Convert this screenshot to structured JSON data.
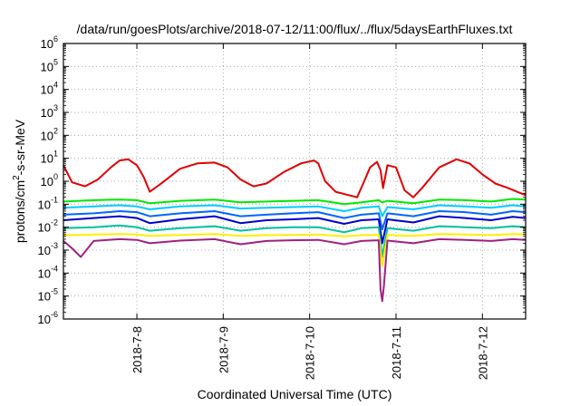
{
  "chart_data": {
    "type": "line",
    "title": "/data/run/goesPlots/archive/2018-07-12/11:00/flux/../flux/5daysEarthFluxes.txt",
    "xlabel": "Coordinated Universal Time (UTC)",
    "ylabel": "protons/cm2-s-sr-MeV",
    "ylabel_parts": {
      "base": "protons/cm",
      "sup": "2",
      "rest": "-s-sr-MeV"
    },
    "yscale": "log",
    "ylim": [
      1e-06,
      1000000.0
    ],
    "xlim": [
      7.15,
      12.5
    ],
    "y_ticks": [
      {
        "exp": -6,
        "base": "10",
        "sup": "-6"
      },
      {
        "exp": -5,
        "base": "10",
        "sup": "-5"
      },
      {
        "exp": -4,
        "base": "10",
        "sup": "-4"
      },
      {
        "exp": -3,
        "base": "10",
        "sup": "-3"
      },
      {
        "exp": -2,
        "base": "10",
        "sup": "-2"
      },
      {
        "exp": -1,
        "base": "10",
        "sup": "-1"
      },
      {
        "exp": 0,
        "base": "10",
        "sup": "0"
      },
      {
        "exp": 1,
        "base": "10",
        "sup": "1"
      },
      {
        "exp": 2,
        "base": "10",
        "sup": "2"
      },
      {
        "exp": 3,
        "base": "10",
        "sup": "3"
      },
      {
        "exp": 4,
        "base": "10",
        "sup": "4"
      },
      {
        "exp": 5,
        "base": "10",
        "sup": "5"
      },
      {
        "exp": 6,
        "base": "10",
        "sup": "6"
      }
    ],
    "x_ticks": [
      {
        "x": 8,
        "label": "2018-7-8"
      },
      {
        "x": 9,
        "label": "2018-7-9"
      },
      {
        "x": 10,
        "label": "2018-7-10"
      },
      {
        "x": 11,
        "label": "2018-7-11"
      },
      {
        "x": 12,
        "label": "2018-7-12"
      }
    ],
    "grid": true,
    "series": [
      {
        "color": "#e00000",
        "x": [
          7.15,
          7.25,
          7.4,
          7.55,
          7.7,
          7.8,
          7.9,
          8.0,
          8.08,
          8.15,
          8.3,
          8.5,
          8.7,
          8.9,
          9.05,
          9.2,
          9.35,
          9.5,
          9.7,
          9.9,
          10.05,
          10.1,
          10.18,
          10.3,
          10.45,
          10.55,
          10.62,
          10.7,
          10.78,
          10.82,
          10.85,
          10.9,
          11.0,
          11.1,
          11.2,
          11.3,
          11.5,
          11.7,
          11.85,
          12.0,
          12.15,
          12.3,
          12.4,
          12.5
        ],
        "y": [
          5,
          0.9,
          0.6,
          1.2,
          4,
          8,
          9,
          5,
          1.5,
          0.35,
          0.9,
          3.5,
          6,
          6.5,
          4,
          1.2,
          0.6,
          0.8,
          2.5,
          6,
          8,
          6,
          1.0,
          0.35,
          0.25,
          0.2,
          0.8,
          4,
          7,
          3,
          0.5,
          5,
          4,
          0.4,
          0.2,
          0.5,
          4,
          9,
          6,
          2,
          0.8,
          0.5,
          0.35,
          0.25
        ]
      },
      {
        "color": "#00e800",
        "x": [
          7.15,
          7.5,
          7.8,
          8.0,
          8.15,
          8.5,
          8.9,
          9.2,
          9.5,
          9.8,
          10.1,
          10.4,
          10.6,
          10.8,
          10.84,
          10.9,
          11.2,
          11.5,
          11.8,
          12.1,
          12.35,
          12.5
        ],
        "y": [
          0.13,
          0.15,
          0.16,
          0.15,
          0.11,
          0.14,
          0.16,
          0.12,
          0.13,
          0.14,
          0.15,
          0.1,
          0.12,
          0.15,
          0.12,
          0.14,
          0.11,
          0.16,
          0.15,
          0.13,
          0.17,
          0.16
        ]
      },
      {
        "color": "#00ccff",
        "x": [
          7.15,
          7.5,
          7.8,
          8.0,
          8.15,
          8.5,
          8.9,
          9.2,
          9.5,
          9.8,
          10.1,
          10.4,
          10.6,
          10.8,
          10.84,
          10.9,
          11.2,
          11.5,
          11.8,
          12.1,
          12.35,
          12.5
        ],
        "y": [
          0.07,
          0.08,
          0.09,
          0.08,
          0.06,
          0.08,
          0.09,
          0.065,
          0.07,
          0.075,
          0.08,
          0.05,
          0.07,
          0.08,
          0.03,
          0.075,
          0.06,
          0.09,
          0.08,
          0.07,
          0.09,
          0.08
        ]
      },
      {
        "color": "#0066ff",
        "x": [
          7.15,
          7.5,
          7.8,
          8.0,
          8.15,
          8.5,
          8.9,
          9.2,
          9.5,
          9.8,
          10.1,
          10.4,
          10.6,
          10.8,
          10.84,
          10.9,
          11.2,
          11.5,
          11.8,
          12.1,
          12.35,
          12.5
        ],
        "y": [
          0.035,
          0.04,
          0.05,
          0.045,
          0.03,
          0.04,
          0.05,
          0.03,
          0.035,
          0.04,
          0.045,
          0.025,
          0.035,
          0.04,
          0.008,
          0.04,
          0.03,
          0.05,
          0.045,
          0.035,
          0.05,
          0.045
        ]
      },
      {
        "color": "#0000cc",
        "x": [
          7.15,
          7.5,
          7.8,
          8.0,
          8.15,
          8.5,
          8.9,
          9.2,
          9.5,
          9.8,
          10.1,
          10.4,
          10.6,
          10.8,
          10.84,
          10.9,
          11.2,
          11.5,
          11.8,
          12.1,
          12.35,
          12.5
        ],
        "y": [
          0.02,
          0.025,
          0.03,
          0.025,
          0.015,
          0.022,
          0.03,
          0.015,
          0.02,
          0.022,
          0.025,
          0.014,
          0.02,
          0.022,
          0.002,
          0.022,
          0.016,
          0.03,
          0.025,
          0.02,
          0.028,
          0.025
        ]
      },
      {
        "color": "#00c0a0",
        "x": [
          7.15,
          7.5,
          7.8,
          8.0,
          8.15,
          8.5,
          8.9,
          9.2,
          9.5,
          9.8,
          10.1,
          10.4,
          10.6,
          10.8,
          10.84,
          10.9,
          11.2,
          11.5,
          11.8,
          12.1,
          12.35,
          12.5
        ],
        "y": [
          0.009,
          0.01,
          0.012,
          0.01,
          0.007,
          0.009,
          0.011,
          0.007,
          0.009,
          0.01,
          0.01,
          0.006,
          0.009,
          0.01,
          0.0005,
          0.009,
          0.007,
          0.011,
          0.01,
          0.009,
          0.011,
          0.01
        ]
      },
      {
        "color": "#ffee00",
        "x": [
          7.15,
          7.5,
          7.8,
          8.0,
          8.15,
          8.5,
          8.9,
          9.2,
          9.5,
          9.8,
          10.1,
          10.4,
          10.6,
          10.8,
          10.84,
          10.9,
          11.2,
          11.5,
          11.8,
          12.1,
          12.35,
          12.5
        ],
        "y": [
          0.0045,
          0.0048,
          0.005,
          0.0048,
          0.0042,
          0.0046,
          0.005,
          0.0042,
          0.0045,
          0.0046,
          0.0048,
          0.004,
          0.0045,
          0.0046,
          0.0002,
          0.0046,
          0.0042,
          0.005,
          0.0048,
          0.0045,
          0.005,
          0.0048
        ]
      },
      {
        "color": "#a02080",
        "x": [
          7.15,
          7.25,
          7.35,
          7.5,
          7.8,
          8.0,
          8.15,
          8.5,
          8.9,
          9.2,
          9.5,
          9.8,
          10.1,
          10.4,
          10.6,
          10.8,
          10.82,
          10.84,
          10.86,
          10.9,
          11.2,
          11.5,
          11.8,
          12.1,
          12.35,
          12.5
        ],
        "y": [
          0.0025,
          0.0012,
          0.0005,
          0.0025,
          0.003,
          0.0028,
          0.002,
          0.0026,
          0.003,
          0.0018,
          0.0025,
          0.0027,
          0.0028,
          0.0018,
          0.0025,
          0.0027,
          2e-05,
          6e-06,
          3e-05,
          0.0026,
          0.002,
          0.003,
          0.0028,
          0.0025,
          0.003,
          0.0028
        ]
      }
    ]
  }
}
